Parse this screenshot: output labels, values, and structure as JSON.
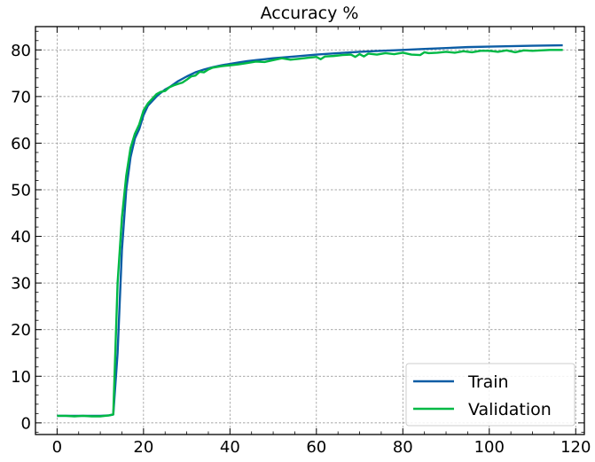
{
  "chart_data": {
    "type": "line",
    "title": "Accuracy %",
    "xlabel": "",
    "ylabel": "",
    "xlim": [
      -5,
      122
    ],
    "ylim": [
      -2.5,
      85
    ],
    "xticks": [
      0,
      20,
      40,
      60,
      80,
      100,
      120
    ],
    "yticks": [
      0,
      10,
      20,
      30,
      40,
      50,
      60,
      70,
      80
    ],
    "grid": true,
    "legend_position": "bottom-right",
    "series": [
      {
        "name": "Train",
        "color": "#0C5DA5",
        "x": [
          0,
          2,
          4,
          6,
          8,
          10,
          12,
          13,
          14,
          15,
          16,
          17,
          18,
          19,
          20,
          21,
          22,
          23,
          24,
          25,
          26,
          28,
          30,
          32,
          34,
          36,
          38,
          40,
          42,
          44,
          46,
          48,
          50,
          55,
          60,
          65,
          70,
          75,
          80,
          85,
          90,
          95,
          100,
          105,
          110,
          117
        ],
        "y": [
          1.5,
          1.5,
          1.5,
          1.5,
          1.5,
          1.5,
          1.6,
          1.8,
          15,
          37,
          50,
          57,
          61,
          63,
          66,
          68,
          69,
          70,
          70.8,
          71.5,
          72,
          73.3,
          74.3,
          75.2,
          75.8,
          76.3,
          76.7,
          77.0,
          77.3,
          77.6,
          77.8,
          78.0,
          78.2,
          78.6,
          79.0,
          79.3,
          79.6,
          79.8,
          80.0,
          80.2,
          80.4,
          80.6,
          80.7,
          80.8,
          80.9,
          81.0
        ]
      },
      {
        "name": "Validation",
        "color": "#00B945",
        "x": [
          0,
          2,
          4,
          6,
          8,
          10,
          12,
          13,
          14,
          15,
          16,
          17,
          18,
          19,
          20,
          21,
          22,
          23,
          24,
          25,
          26,
          27,
          28,
          29,
          30,
          31,
          32,
          33,
          34,
          35,
          36,
          38,
          40,
          42,
          44,
          46,
          48,
          50,
          52,
          54,
          56,
          58,
          60,
          61,
          62,
          64,
          66,
          68,
          69,
          70,
          71,
          72,
          74,
          76,
          78,
          80,
          82,
          84,
          85,
          86,
          88,
          90,
          92,
          94,
          96,
          98,
          100,
          102,
          104,
          106,
          108,
          110,
          112,
          114,
          117
        ],
        "y": [
          1.5,
          1.5,
          1.4,
          1.5,
          1.4,
          1.4,
          1.6,
          1.8,
          30,
          44,
          53,
          59,
          62,
          64,
          67,
          68.5,
          69.5,
          70.5,
          71,
          71.2,
          72,
          72.4,
          72.7,
          73,
          73.6,
          74.3,
          74.5,
          75.3,
          75.2,
          75.8,
          76.2,
          76.5,
          76.7,
          76.9,
          77.2,
          77.5,
          77.4,
          77.8,
          78.2,
          77.9,
          78.1,
          78.3,
          78.5,
          78.0,
          78.6,
          78.7,
          78.9,
          79.0,
          78.5,
          79.1,
          78.6,
          79.2,
          79.0,
          79.3,
          79.1,
          79.4,
          79.0,
          78.9,
          79.5,
          79.3,
          79.4,
          79.6,
          79.4,
          79.7,
          79.5,
          79.8,
          79.8,
          79.6,
          79.9,
          79.5,
          79.9,
          79.8,
          79.9,
          80.0,
          80.0
        ]
      }
    ]
  }
}
